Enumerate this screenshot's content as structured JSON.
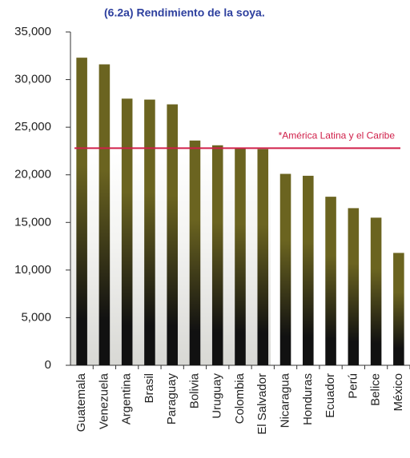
{
  "chart_data": {
    "type": "bar",
    "title": "(6.2a) Rendimiento de la soya.",
    "categories": [
      "Guatemala",
      "Venezuela",
      "Argentina",
      "Brasil",
      "Paraguay",
      "Bolivia",
      "Uruguay",
      "Colombia",
      "El Salvador",
      "Nicaragua",
      "Honduras",
      "Ecuador",
      "Perú",
      "Belice",
      "México"
    ],
    "values": [
      32300,
      31600,
      28000,
      27900,
      27400,
      23600,
      23100,
      22800,
      22700,
      20100,
      19900,
      17700,
      16500,
      15500,
      11800
    ],
    "color": "#6b6420",
    "ylim": [
      0,
      35000
    ],
    "yticks": [
      0,
      {
        "value": 5000,
        "label": "5,000"
      },
      {
        "value": 10000,
        "label": "10,000"
      },
      {
        "value": 15000,
        "label": "15,000"
      },
      {
        "value": 20000,
        "label": "20,000"
      },
      {
        "value": 25000,
        "label": "25,000"
      },
      {
        "value": 30000,
        "label": "30,000"
      },
      {
        "value": 35000,
        "label": "35,000"
      }
    ],
    "reference_line": {
      "value": 22800,
      "label": "*América Latina y el Caribe",
      "color": "#d0204a"
    },
    "title_color": "#2d3f9e"
  }
}
